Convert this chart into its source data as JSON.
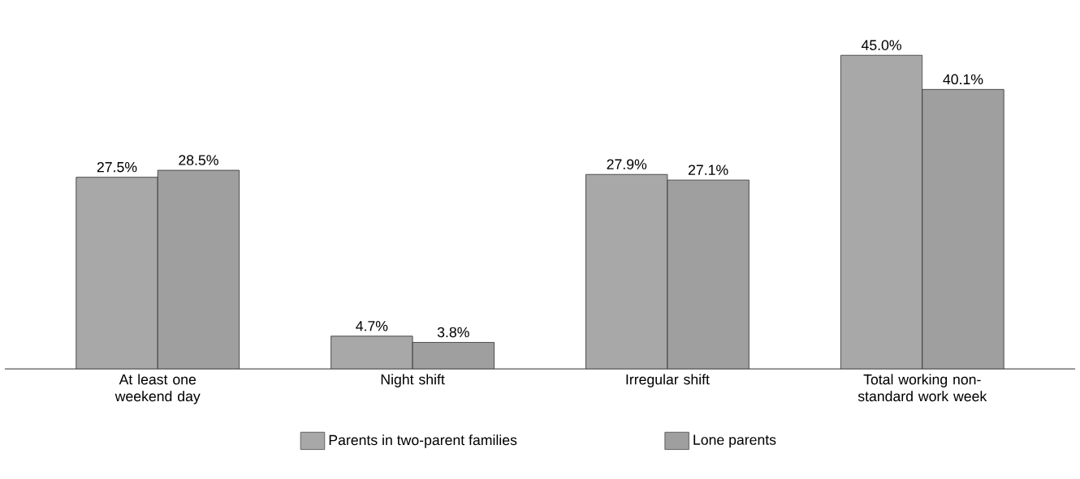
{
  "chart_data": {
    "type": "bar",
    "categories": [
      "At least one weekend day",
      "Night shift",
      "Irregular shift",
      "Total working non-standard work week"
    ],
    "series": [
      {
        "name": "Parents in two-parent families",
        "color": "#a8a8a8",
        "values": [
          27.5,
          4.7,
          27.9,
          45.0
        ],
        "value_labels": [
          "27.5%",
          "4.7%",
          "27.9%",
          "45.0%"
        ]
      },
      {
        "name": "Lone parents",
        "color": "#9f9f9f",
        "values": [
          28.5,
          3.8,
          27.1,
          40.1
        ],
        "value_labels": [
          "28.5%",
          "3.8%",
          "27.1%",
          "40.1%"
        ]
      }
    ],
    "legend": "bottom"
  }
}
